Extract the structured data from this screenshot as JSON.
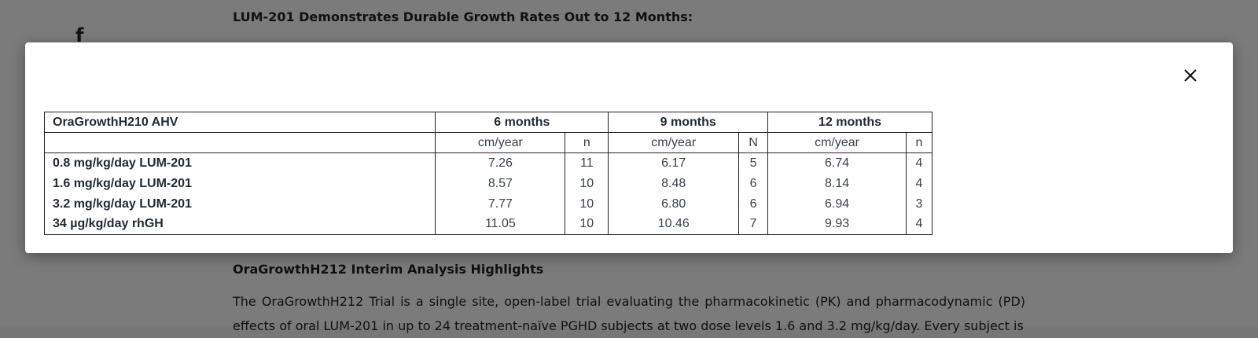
{
  "background": {
    "social_icon": "facebook-icon",
    "heading": "LUM-201 Demonstrates Durable Growth Rates Out to 12 Months:",
    "subheading": "OraGrowthH212 Interim Analysis Highlights",
    "paragraph": "The OraGrowthH212 Trial is a single site, open-label trial evaluating the pharmacokinetic (PK) and pharmacodynamic (PD) effects of oral LUM-201 in up to 24 treatment-naïve PGHD subjects at two dose levels 1.6 and 3.2 mg/kg/day. Every subject is"
  },
  "modal": {
    "close_icon": "close-icon",
    "table": {
      "header": {
        "title": "OraGrowthH210 AHV",
        "col6": "6 months",
        "col9": "9 months",
        "col12": "12 months"
      },
      "units": {
        "u6": "cm/year",
        "n6": "n",
        "u9": "cm/year",
        "n9": "N",
        "u12": "cm/year",
        "n12": "n"
      },
      "rows": [
        {
          "label": "0.8 mg/kg/day LUM-201",
          "v6": "7.26",
          "n6": "11",
          "v9": "6.17",
          "n9": "5",
          "v12": "6.74",
          "n12": "4"
        },
        {
          "label": "1.6 mg/kg/day LUM-201",
          "v6": "8.57",
          "n6": "10",
          "v9": "8.48",
          "n9": "6",
          "v12": "8.14",
          "n12": "4"
        },
        {
          "label": "3.2 mg/kg/day LUM-201",
          "v6": "7.77",
          "n6": "10",
          "v9": "6.80",
          "n9": "6",
          "v12": "6.94",
          "n12": "3"
        },
        {
          "label": "34 µg/kg/day rhGH",
          "v6": "11.05",
          "n6": "10",
          "v9": "10.46",
          "n9": "7",
          "v12": "9.93",
          "n12": "4"
        }
      ]
    }
  }
}
